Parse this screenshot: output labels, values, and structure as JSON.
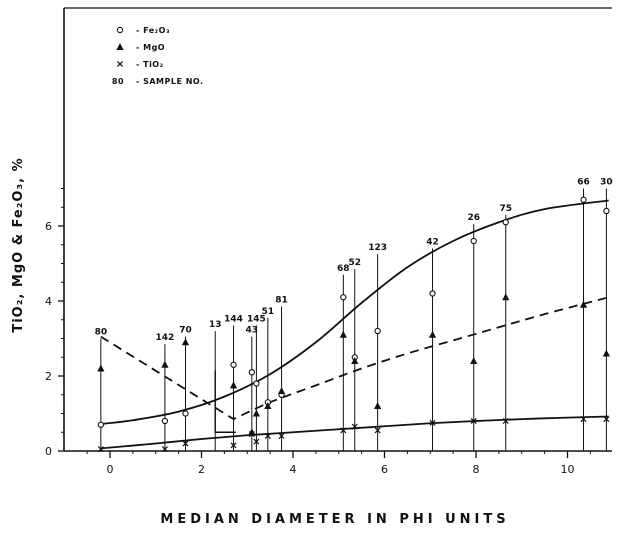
{
  "chart_data": {
    "type": "scatter",
    "title": "",
    "xlabel": "MEDIAN  DIAMETER  IN  PHI  UNITS",
    "ylabel": "TiO₂, MgO & Fe₂O₃,  %",
    "xlim": [
      -0.8,
      11
    ],
    "ylim": [
      0,
      7.5
    ],
    "x_ticks": [
      "0",
      "2",
      "4",
      "6",
      "8",
      "10"
    ],
    "y_ticks": [
      "0",
      "2",
      "4",
      "6"
    ],
    "legend_position": "top-left",
    "legend": [
      {
        "marker": "o",
        "label": "- Fe₂O₃"
      },
      {
        "marker": "▲",
        "label": "- MgO"
      },
      {
        "marker": "x",
        "label": "- TiO₂"
      },
      {
        "marker": "80",
        "label": "- SAMPLE NO."
      }
    ],
    "samples": [
      {
        "no": "80",
        "x": -0.2,
        "fe2o3": 0.7,
        "mgo": 2.2,
        "tio2": 0.05,
        "top": 3.0
      },
      {
        "no": "142",
        "x": 1.2,
        "fe2o3": 0.8,
        "mgo": 2.3,
        "tio2": 0.05,
        "top": 2.85
      },
      {
        "no": "70",
        "x": 1.65,
        "fe2o3": 1.0,
        "mgo": 2.9,
        "tio2": 0.2,
        "top": 3.05
      },
      {
        "no": "13",
        "x": 2.3,
        "fe2o3": null,
        "mgo": null,
        "tio2": null,
        "top": 3.2
      },
      {
        "no": "144",
        "x": 2.7,
        "fe2o3": 2.3,
        "mgo": 1.75,
        "tio2": 0.15,
        "top": 3.35
      },
      {
        "no": "43",
        "x": 3.1,
        "fe2o3": 2.1,
        "mgo": 0.5,
        "tio2": 0.45,
        "top": 3.05
      },
      {
        "no": "145",
        "x": 3.2,
        "fe2o3": 1.8,
        "mgo": 1.0,
        "tio2": 0.25,
        "top": 3.35
      },
      {
        "no": "51",
        "x": 3.45,
        "fe2o3": 1.3,
        "mgo": 1.2,
        "tio2": 0.4,
        "top": 3.55
      },
      {
        "no": "81",
        "x": 3.75,
        "fe2o3": 1.5,
        "mgo": 1.6,
        "tio2": 0.4,
        "top": 3.85
      },
      {
        "no": "68",
        "x": 5.1,
        "fe2o3": 4.1,
        "mgo": 3.1,
        "tio2": 0.55,
        "top": 4.7
      },
      {
        "no": "52",
        "x": 5.35,
        "fe2o3": 2.5,
        "mgo": 2.4,
        "tio2": 0.65,
        "top": 4.85
      },
      {
        "no": "123",
        "x": 5.85,
        "fe2o3": 3.2,
        "mgo": 1.2,
        "tio2": 0.55,
        "top": 5.25
      },
      {
        "no": "42",
        "x": 7.05,
        "fe2o3": 4.2,
        "mgo": 3.1,
        "tio2": 0.75,
        "top": 5.4
      },
      {
        "no": "26",
        "x": 7.95,
        "fe2o3": 5.6,
        "mgo": 2.4,
        "tio2": 0.8,
        "top": 6.05
      },
      {
        "no": "75",
        "x": 8.65,
        "fe2o3": 6.1,
        "mgo": 4.1,
        "tio2": 0.8,
        "top": 6.3
      },
      {
        "no": "66",
        "x": 10.35,
        "fe2o3": 6.7,
        "mgo": 3.9,
        "tio2": 0.85,
        "top": 7.0
      },
      {
        "no": "30",
        "x": 10.85,
        "fe2o3": 6.4,
        "mgo": 2.6,
        "tio2": 0.85,
        "top": 7.0
      }
    ],
    "curves": [
      {
        "name": "Fe₂O₃",
        "style": "solid",
        "x": [
          -0.2,
          0.5,
          1.5,
          2.5,
          3.5,
          4.5,
          5.5,
          6.5,
          7.5,
          8.5,
          9.5,
          10.9
        ],
        "y": [
          0.72,
          0.82,
          1.05,
          1.45,
          2.05,
          2.9,
          3.95,
          4.9,
          5.6,
          6.1,
          6.45,
          6.68
        ]
      },
      {
        "name": "MgO",
        "style": "dashed",
        "x": [
          -0.2,
          2.7,
          3.5,
          4.5,
          5.5,
          6.5,
          7.5,
          8.5,
          9.5,
          10.9
        ],
        "y": [
          3.05,
          0.85,
          1.3,
          1.75,
          2.2,
          2.6,
          2.95,
          3.3,
          3.65,
          4.1
        ]
      },
      {
        "name": "TiO₂",
        "style": "solid",
        "x": [
          -0.2,
          1.0,
          2.0,
          3.0,
          4.0,
          5.0,
          6.0,
          7.0,
          8.0,
          9.0,
          10.0,
          10.9
        ],
        "y": [
          0.07,
          0.2,
          0.32,
          0.42,
          0.5,
          0.58,
          0.66,
          0.74,
          0.8,
          0.85,
          0.89,
          0.92
        ]
      }
    ],
    "annotations": [
      {
        "type": "fe-step",
        "x": [
          2.3,
          2.3,
          2.75
        ],
        "y": [
          2.15,
          0.5,
          0.5
        ]
      }
    ]
  }
}
